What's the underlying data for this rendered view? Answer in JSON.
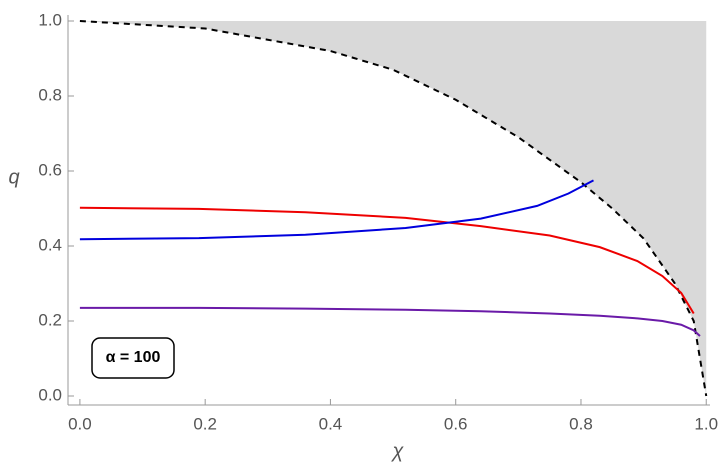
{
  "chart_data": {
    "type": "line",
    "x_label": "χ",
    "y_label": "q",
    "annotation": "α = 100",
    "xlim": [
      -0.019,
      1.006
    ],
    "ylim": [
      -0.024,
      1.016
    ],
    "xticks": [
      {
        "value": 0,
        "label": "0.0"
      },
      0.2,
      0.4,
      0.6,
      0.8,
      {
        "value": 1,
        "label": "1.0"
      }
    ],
    "yticks": [
      {
        "value": 0,
        "label": "0.0"
      },
      0.2,
      0.4,
      0.6,
      0.8,
      {
        "value": 1,
        "label": "1.0"
      }
    ],
    "series": [
      {
        "color": "#000000",
        "style": "dashed",
        "shade": "#d9d9d9",
        "x": [
          0,
          0.2,
          0.4,
          0.5,
          0.6,
          0.7,
          0.8,
          0.85,
          0.9,
          0.95,
          0.98,
          1.0
        ],
        "values": [
          1.0,
          0.98,
          0.92,
          0.87,
          0.79,
          0.69,
          0.57,
          0.5,
          0.42,
          0.3,
          0.2,
          0.0
        ]
      },
      {
        "color": "#ee0000",
        "style": "solid",
        "x": [
          0,
          0.19,
          0.36,
          0.52,
          0.64,
          0.75,
          0.83,
          0.89,
          0.93,
          0.96,
          0.98
        ],
        "values": [
          0.502,
          0.499,
          0.49,
          0.475,
          0.453,
          0.428,
          0.397,
          0.36,
          0.32,
          0.275,
          0.22
        ]
      },
      {
        "color": "#0000dd",
        "style": "solid",
        "x": [
          0,
          0.19,
          0.36,
          0.52,
          0.64,
          0.73,
          0.78,
          0.82
        ],
        "values": [
          0.418,
          0.421,
          0.43,
          0.448,
          0.473,
          0.507,
          0.54,
          0.575
        ]
      },
      {
        "color": "#6a1aa8",
        "style": "solid",
        "x": [
          0,
          0.19,
          0.36,
          0.52,
          0.64,
          0.75,
          0.83,
          0.89,
          0.93,
          0.96,
          0.98,
          0.99
        ],
        "values": [
          0.235,
          0.235,
          0.233,
          0.23,
          0.226,
          0.22,
          0.214,
          0.207,
          0.2,
          0.19,
          0.175,
          0.16
        ]
      }
    ]
  }
}
